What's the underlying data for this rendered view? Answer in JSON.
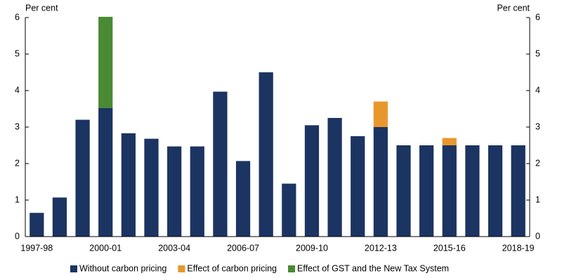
{
  "chart_data": {
    "type": "stacked_bar",
    "ylabel": "Per cent",
    "y2label": "Per cent",
    "categories": [
      "1997-98",
      null,
      null,
      "2000-01",
      null,
      null,
      "2003-04",
      null,
      null,
      "2006-07",
      null,
      null,
      "2009-10",
      null,
      null,
      "2012-13",
      null,
      null,
      "2015-16",
      null,
      null,
      "2018-19"
    ],
    "series": [
      {
        "name": "Without carbon pricing",
        "color": "#1b3461",
        "values": [
          0.65,
          1.07,
          3.2,
          3.52,
          2.83,
          2.68,
          2.47,
          2.47,
          3.97,
          2.07,
          4.5,
          1.45,
          3.05,
          3.25,
          2.75,
          3.0,
          2.5,
          2.5,
          2.5,
          2.5,
          2.5,
          2.5
        ]
      },
      {
        "name": "Effect of carbon pricing",
        "color": "#e8972c",
        "values": [
          0,
          0,
          0,
          0,
          0,
          0,
          0,
          0,
          0,
          0,
          0,
          0,
          0,
          0,
          0,
          0.7,
          0,
          0,
          0.2,
          0,
          0,
          0
        ]
      },
      {
        "name": "Effect of GST and the New Tax System",
        "color": "#4a8a35",
        "values": [
          0,
          0,
          0,
          2.5,
          0,
          0,
          0,
          0,
          0,
          0,
          0,
          0,
          0,
          0,
          0,
          0,
          0,
          0,
          0,
          0,
          0,
          0
        ]
      }
    ],
    "ylim": [
      0,
      6
    ],
    "yticks": [
      0,
      1,
      2,
      3,
      4,
      5,
      6
    ],
    "y2lim": [
      0,
      6
    ],
    "y2ticks": [
      0,
      1,
      2,
      3,
      4,
      5,
      6
    ],
    "legend": "bottom"
  }
}
